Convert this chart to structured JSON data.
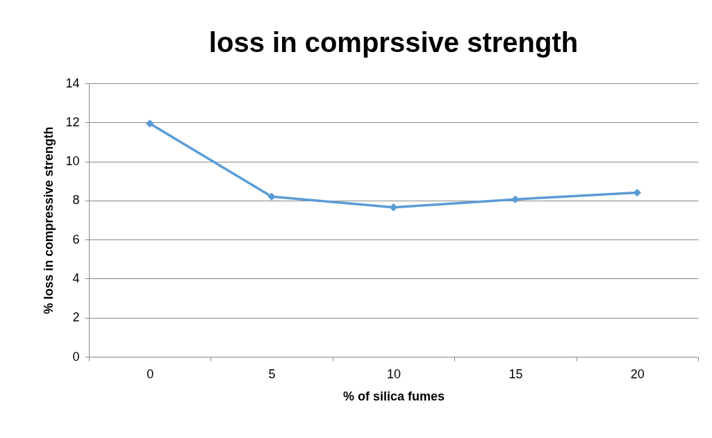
{
  "chart_data": {
    "type": "line",
    "title": "loss in comprssive strength",
    "xlabel": "% of silica fumes",
    "ylabel": "% loss in compressive strength",
    "categories": [
      "0",
      "5",
      "10",
      "15",
      "20"
    ],
    "series": [
      {
        "color": "#5b9bd5",
        "values": [
          11.94,
          8.2,
          7.65,
          8.06,
          8.4
        ]
      }
    ],
    "ylim": [
      0,
      14
    ],
    "yticks": [
      0,
      2,
      4,
      6,
      8,
      10,
      12,
      14
    ],
    "grid": "y",
    "marker": "diamond",
    "legend": false
  }
}
